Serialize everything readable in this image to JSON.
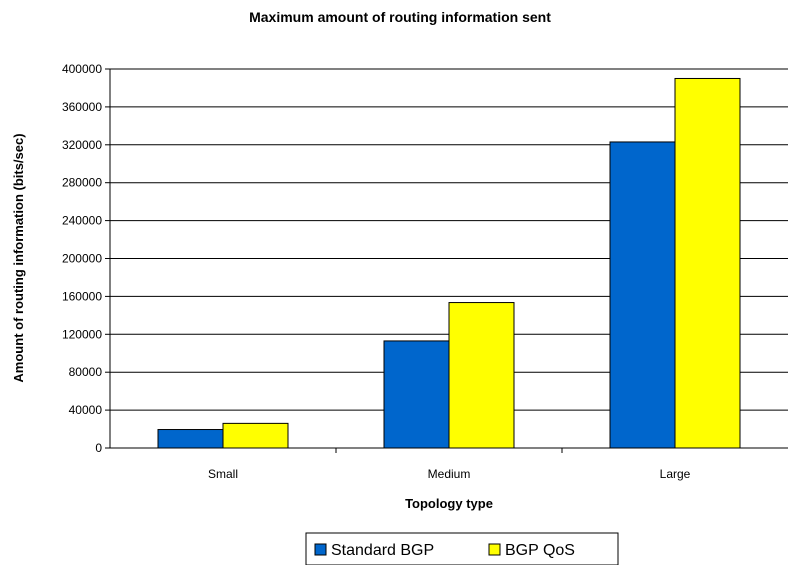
{
  "chart_data": {
    "type": "bar",
    "title": "Maximum amount of routing information sent",
    "xlabel": "Topology type",
    "ylabel": "Amount of routing information (bits/sec)",
    "categories": [
      "Small",
      "Medium",
      "Large"
    ],
    "series": [
      {
        "name": "Standard BGP",
        "values": [
          19500,
          113000,
          323000
        ],
        "color": "#0066CC"
      },
      {
        "name": "BGP QoS",
        "values": [
          26000,
          153500,
          390000
        ],
        "color": "#FFFF00"
      }
    ],
    "ylim": [
      0,
      400000
    ],
    "yticks": [
      "0",
      "40000",
      "80000",
      "120000",
      "160000",
      "200000",
      "240000",
      "280000",
      "320000",
      "360000",
      "400000"
    ],
    "grid": true,
    "legend_position": "bottom"
  }
}
